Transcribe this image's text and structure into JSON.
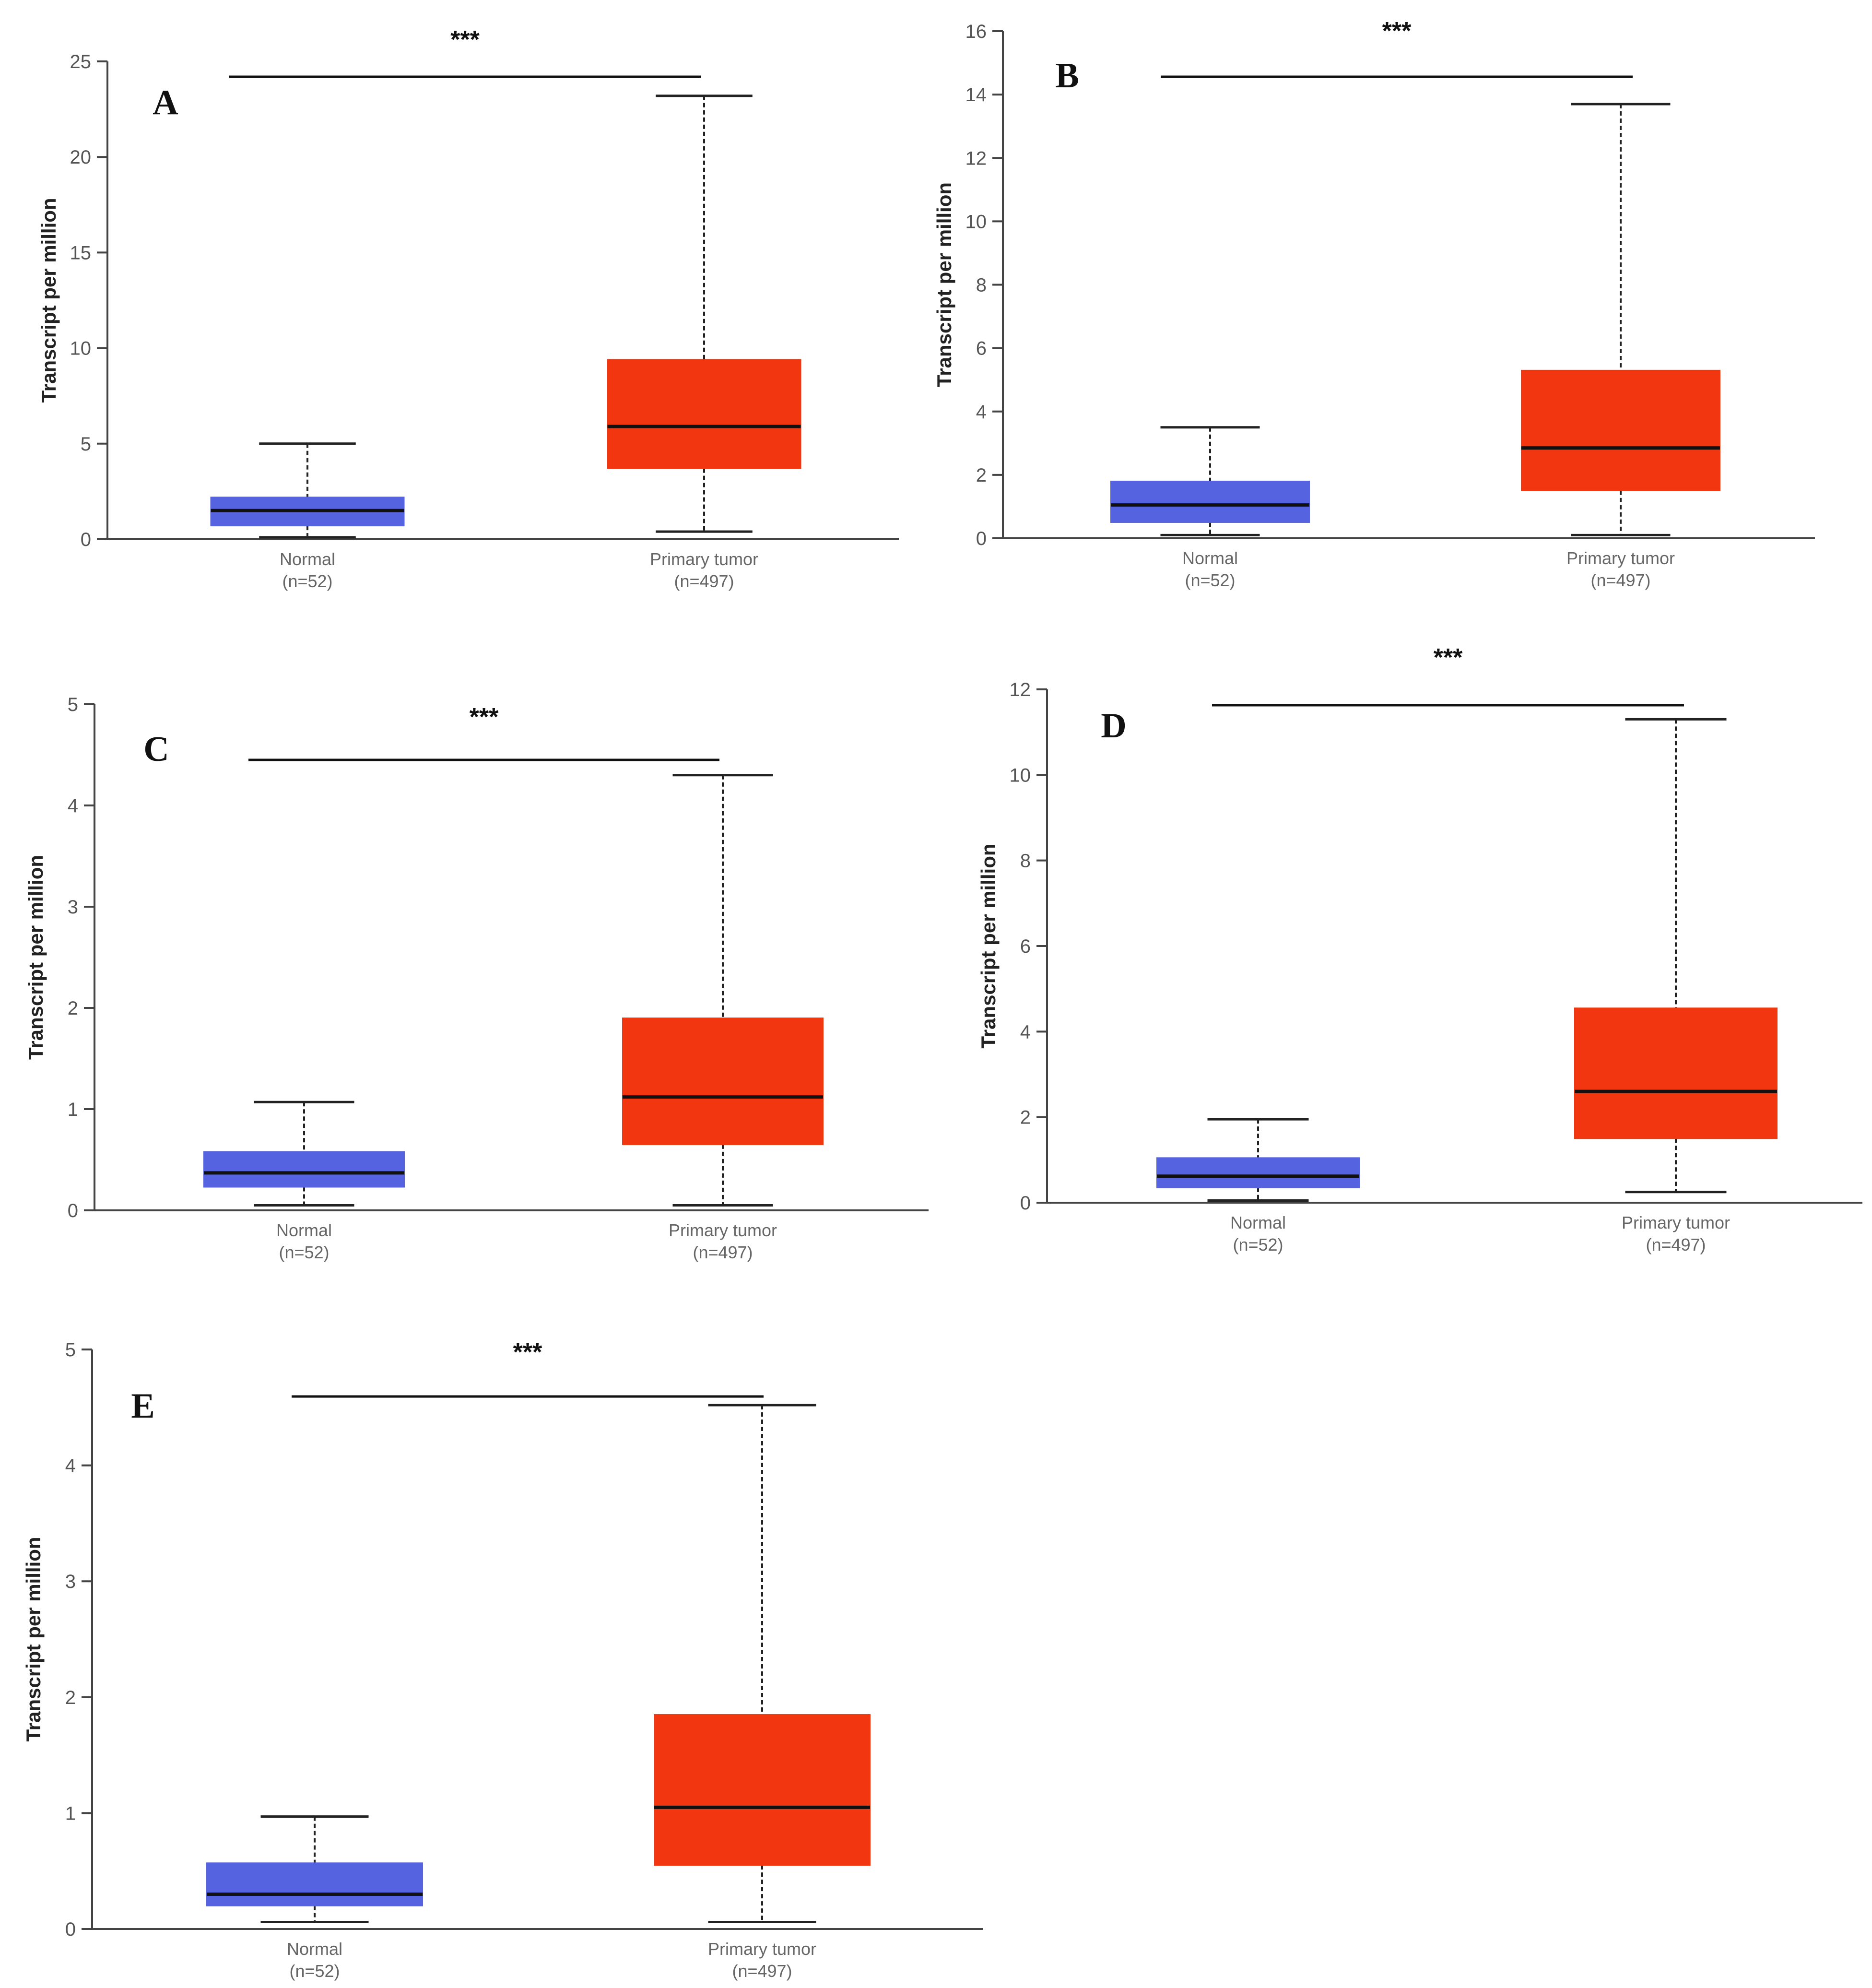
{
  "figure": {
    "colors": {
      "normal": "#5663E0",
      "tumor": "#F2360F",
      "axis": "#444444",
      "median": "#111111"
    }
  },
  "chart_data": [
    {
      "type": "box",
      "panel": "A",
      "ylabel": "Transcript per million",
      "ylim": [
        0,
        25
      ],
      "yticks": [
        0,
        5,
        10,
        15,
        20,
        25
      ],
      "significance": "***",
      "categories": [
        {
          "label": "Normal",
          "n_label": "(n=52)",
          "color": "#5663E0",
          "min": 0.1,
          "q1": 0.7,
          "median": 1.5,
          "q3": 2.2,
          "max": 5.0
        },
        {
          "label": "Primary tumor",
          "n_label": "(n=497)",
          "color": "#F2360F",
          "min": 0.4,
          "q1": 3.7,
          "median": 5.9,
          "q3": 9.4,
          "max": 23.2
        }
      ]
    },
    {
      "type": "box",
      "panel": "B",
      "ylabel": "Transcript per million",
      "ylim": [
        0,
        16
      ],
      "yticks": [
        0,
        2,
        4,
        6,
        8,
        10,
        12,
        14,
        16
      ],
      "significance": "***",
      "categories": [
        {
          "label": "Normal",
          "n_label": "(n=52)",
          "color": "#5663E0",
          "min": 0.1,
          "q1": 0.5,
          "median": 1.05,
          "q3": 1.8,
          "max": 3.5
        },
        {
          "label": "Primary tumor",
          "n_label": "(n=497)",
          "color": "#F2360F",
          "min": 0.1,
          "q1": 1.5,
          "median": 2.85,
          "q3": 5.3,
          "max": 13.7
        }
      ]
    },
    {
      "type": "box",
      "panel": "C",
      "ylabel": "Transcript per million",
      "ylim": [
        0,
        5
      ],
      "yticks": [
        0,
        1,
        2,
        3,
        4,
        5
      ],
      "significance": "***",
      "categories": [
        {
          "label": "Normal",
          "n_label": "(n=52)",
          "color": "#5663E0",
          "min": 0.05,
          "q1": 0.23,
          "median": 0.37,
          "q3": 0.58,
          "max": 1.07
        },
        {
          "label": "Primary tumor",
          "n_label": "(n=497)",
          "color": "#F2360F",
          "min": 0.05,
          "q1": 0.65,
          "median": 1.12,
          "q3": 1.9,
          "max": 4.3
        }
      ]
    },
    {
      "type": "box",
      "panel": "D",
      "ylabel": "Transcript per million",
      "ylim": [
        0,
        12
      ],
      "yticks": [
        0,
        2,
        4,
        6,
        8,
        10,
        12
      ],
      "significance": "***",
      "categories": [
        {
          "label": "Normal",
          "n_label": "(n=52)",
          "color": "#5663E0",
          "min": 0.05,
          "q1": 0.35,
          "median": 0.62,
          "q3": 1.05,
          "max": 1.95
        },
        {
          "label": "Primary tumor",
          "n_label": "(n=497)",
          "color": "#F2360F",
          "min": 0.25,
          "q1": 1.5,
          "median": 2.6,
          "q3": 4.55,
          "max": 11.3
        }
      ]
    },
    {
      "type": "box",
      "panel": "E",
      "ylabel": "Transcript per million",
      "ylim": [
        0,
        5
      ],
      "yticks": [
        0,
        1,
        2,
        3,
        4,
        5
      ],
      "significance": "***",
      "categories": [
        {
          "label": "Normal",
          "n_label": "(n=52)",
          "color": "#5663E0",
          "min": 0.06,
          "q1": 0.2,
          "median": 0.3,
          "q3": 0.57,
          "max": 0.97
        },
        {
          "label": "Primary tumor",
          "n_label": "(n=497)",
          "color": "#F2360F",
          "min": 0.06,
          "q1": 0.55,
          "median": 1.05,
          "q3": 1.85,
          "max": 4.52
        }
      ]
    }
  ]
}
